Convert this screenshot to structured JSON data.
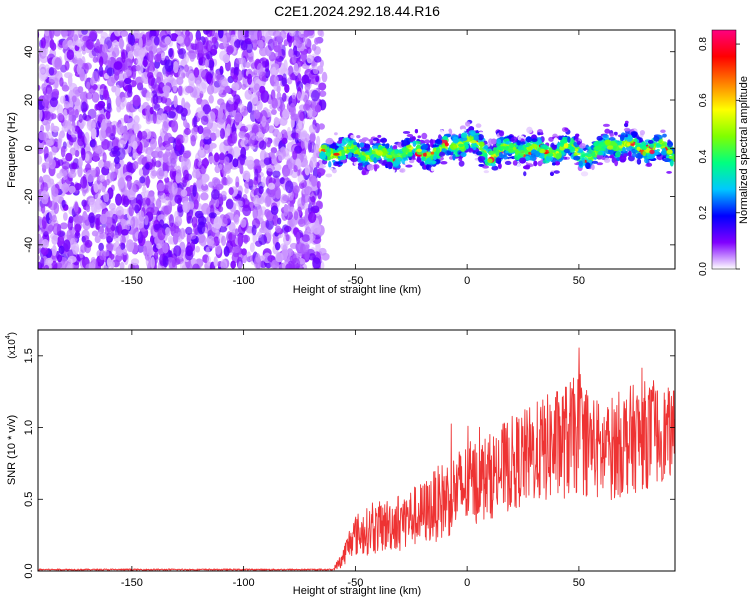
{
  "title": "C2E1.2024.292.18.44.R16",
  "chart_data": [
    {
      "type": "heatmap",
      "xlabel": "Height of straight line (km)",
      "ylabel": "Frequency (Hz)",
      "xlim": [
        -192,
        93
      ],
      "ylim": [
        -50,
        49
      ],
      "xticks": [
        -150,
        -100,
        -50,
        0,
        50
      ],
      "yticks": [
        -40,
        -20,
        0,
        20,
        40
      ],
      "noise_region_x": [
        -192,
        -65
      ],
      "signal_band": {
        "x_start": -65,
        "x_end": 93,
        "center_hz": [
          {
            "x": -65,
            "y": -2
          },
          {
            "x": -55,
            "y": -1
          },
          {
            "x": -45,
            "y": -2
          },
          {
            "x": -35,
            "y": -3
          },
          {
            "x": -25,
            "y": -1
          },
          {
            "x": -15,
            "y": -2
          },
          {
            "x": -5,
            "y": 2
          },
          {
            "x": 0,
            "y": 3
          },
          {
            "x": 5,
            "y": 1
          },
          {
            "x": 10,
            "y": -3
          },
          {
            "x": 15,
            "y": -1
          },
          {
            "x": 25,
            "y": 0
          },
          {
            "x": 35,
            "y": -2
          },
          {
            "x": 45,
            "y": 0
          },
          {
            "x": 55,
            "y": -3
          },
          {
            "x": 65,
            "y": 2
          },
          {
            "x": 75,
            "y": 0
          },
          {
            "x": 85,
            "y": 1
          },
          {
            "x": 93,
            "y": -3
          }
        ],
        "half_width_hz": 6
      },
      "colorbar": {
        "label": "Normalized spectral amplitude",
        "range": [
          0,
          0.85
        ],
        "ticks": [
          "0.0",
          "0.2",
          "0.4",
          "0.6",
          "0.8"
        ],
        "colors": [
          "#ffffff",
          "#8000ff",
          "#0000ff",
          "#00c8ff",
          "#00ff80",
          "#80ff00",
          "#ffff00",
          "#ff8000",
          "#ff0000",
          "#ff0080"
        ]
      }
    },
    {
      "type": "line",
      "xlabel": "Height of straight line (km)",
      "ylabel": "SNR (10 * v/v)",
      "yscale_label": "(x10",
      "yscale_exp": "4",
      "xlim": [
        -192,
        93
      ],
      "ylim": [
        0,
        1.68
      ],
      "xticks": [
        -150,
        -100,
        -50,
        0,
        50
      ],
      "yticks": [
        "0.0",
        "0.5",
        "1.0",
        "1.5"
      ],
      "color": "#ee3333",
      "series": [
        {
          "x": [
            -192,
            -60,
            -56,
            -52,
            -50,
            -40,
            -30,
            -20,
            -10,
            0,
            10,
            20,
            30,
            40,
            50,
            60,
            70,
            80,
            93
          ],
          "mean": [
            0.01,
            0.01,
            0.08,
            0.22,
            0.25,
            0.3,
            0.35,
            0.4,
            0.5,
            0.6,
            0.66,
            0.75,
            0.82,
            0.88,
            0.95,
            0.82,
            0.9,
            0.95,
            0.96
          ],
          "amp": [
            0.005,
            0.005,
            0.06,
            0.12,
            0.15,
            0.18,
            0.2,
            0.22,
            0.28,
            0.3,
            0.3,
            0.33,
            0.35,
            0.4,
            0.42,
            0.35,
            0.38,
            0.38,
            0.3
          ]
        }
      ]
    }
  ]
}
